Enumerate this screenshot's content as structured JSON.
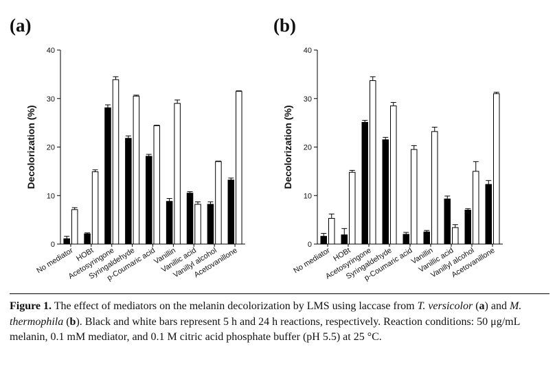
{
  "caption": {
    "label": "Figure 1.",
    "t1": " The effect of mediators on the melanin decolorization by LMS using laccase from ",
    "org1": "T. versicolor",
    "t2": " (",
    "a": "a",
    "t3": ") and ",
    "org2": "M. thermophila",
    "t4": " (",
    "b": "b",
    "t5": "). Black and white bars represent 5 h and 24 h reactions, respectively. Reaction conditions: 50 μg/mL melanin, 0.1 mM mediator, and 0.1 M citric acid phosphate buffer (pH 5.5) at 25 °C."
  },
  "colors": {
    "bar_5h": "#000000",
    "bar_24h": "#ffffff",
    "axis": "#000000"
  },
  "chart_data": [
    {
      "type": "bar",
      "panel_label": "(a)",
      "ylabel": "Decolorization (%)",
      "ylim": [
        0,
        40
      ],
      "yticks": [
        0,
        10,
        20,
        30,
        40
      ],
      "grid": false,
      "categories": [
        "No mediator",
        "HOBt",
        "Acetosyringone",
        "Syringaldehyde",
        "p-Coumaric acid",
        "Vanillin",
        "Vanillic acid",
        "Vanillyl alcohol",
        "Acetovanillone"
      ],
      "series": [
        {
          "values": [
            1.1,
            2.1,
            28.1,
            21.8,
            18.1,
            8.8,
            10.5,
            8.2,
            13.2
          ],
          "errors": [
            0.5,
            0.2,
            0.6,
            0.5,
            0.4,
            0.6,
            0.3,
            0.5,
            0.4
          ]
        },
        {
          "values": [
            7.1,
            14.9,
            33.9,
            30.5,
            24.4,
            29.0,
            8.2,
            17.0,
            31.5
          ],
          "errors": [
            0.4,
            0.4,
            0.6,
            0.2,
            0.1,
            0.7,
            0.5,
            0.1,
            0.1
          ]
        }
      ]
    },
    {
      "type": "bar",
      "panel_label": "(b)",
      "ylabel": "Decolorization (%)",
      "ylim": [
        0,
        40
      ],
      "yticks": [
        0,
        10,
        20,
        30,
        40
      ],
      "grid": false,
      "categories": [
        "No mediator",
        "HOBt",
        "Acetosyringone",
        "Syringaldehyde",
        "p-Coumaric acid",
        "Vanillin",
        "Vanillic acid",
        "Vanillyl alcohol",
        "Acetovanillone"
      ],
      "series": [
        {
          "values": [
            1.6,
            1.9,
            25.1,
            21.5,
            2.0,
            2.5,
            9.3,
            7.0,
            12.3
          ],
          "errors": [
            0.6,
            1.3,
            0.4,
            0.5,
            0.4,
            0.3,
            0.6,
            0.3,
            0.8
          ]
        },
        {
          "values": [
            5.3,
            14.8,
            33.7,
            28.5,
            19.5,
            23.2,
            3.4,
            15.0,
            31.0
          ],
          "errors": [
            0.9,
            0.4,
            0.8,
            0.7,
            0.8,
            0.9,
            0.6,
            2.0,
            0.3
          ]
        }
      ]
    }
  ]
}
